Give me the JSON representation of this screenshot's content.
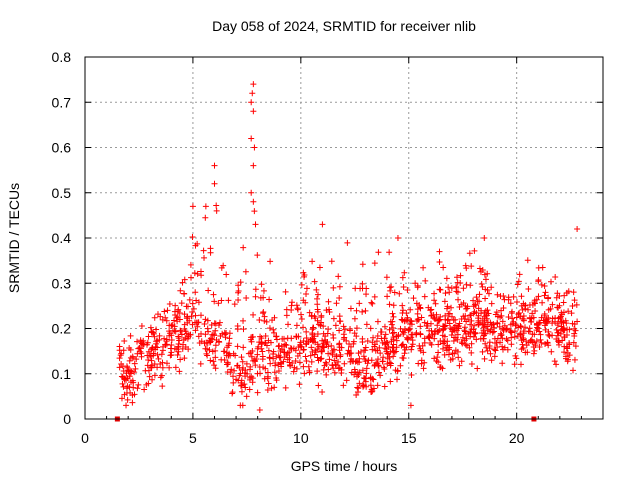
{
  "chart_data": {
    "type": "scatter",
    "title": "Day 058 of 2024, SRMTID for receiver nlib",
    "xlabel": "GPS time / hours",
    "ylabel": "SRMTID / TECUs",
    "xlim": [
      0,
      24
    ],
    "ylim": [
      0,
      0.8
    ],
    "xticks": [
      0,
      5,
      10,
      15,
      20
    ],
    "yticks": [
      0,
      0.1,
      0.2,
      0.3,
      0.4,
      0.5,
      0.6,
      0.7,
      0.8
    ],
    "xtick_labels": [
      "0",
      "5",
      "10",
      "15",
      "20"
    ],
    "ytick_labels": [
      "0",
      "0.1",
      "0.2",
      "0.3",
      "0.4",
      "0.5",
      "0.6",
      "0.7",
      "0.8"
    ],
    "grid": true,
    "point_color": "#ff0000",
    "marker_color": "#e00000",
    "baseline_markers_x": [
      1.5,
      20.8
    ],
    "series_envelope": {
      "name": "SRMTID",
      "hours": [
        1.6,
        2.0,
        2.5,
        3.0,
        3.5,
        4.0,
        4.5,
        5.0,
        5.5,
        6.0,
        6.5,
        7.0,
        7.5,
        7.8,
        8.2,
        9.0,
        10.0,
        10.5,
        11.0,
        12.0,
        13.0,
        14.0,
        15.0,
        16.0,
        17.0,
        18.0,
        19.0,
        20.0,
        21.0,
        22.0,
        22.8
      ],
      "typical": [
        0.1,
        0.09,
        0.12,
        0.13,
        0.15,
        0.17,
        0.19,
        0.22,
        0.18,
        0.17,
        0.15,
        0.1,
        0.08,
        0.15,
        0.13,
        0.13,
        0.15,
        0.17,
        0.15,
        0.14,
        0.11,
        0.16,
        0.18,
        0.18,
        0.19,
        0.2,
        0.2,
        0.2,
        0.2,
        0.2,
        0.17
      ],
      "peak": [
        0.16,
        0.2,
        0.21,
        0.22,
        0.28,
        0.3,
        0.35,
        0.47,
        0.47,
        0.56,
        0.4,
        0.33,
        0.62,
        0.74,
        0.38,
        0.32,
        0.4,
        0.43,
        0.38,
        0.4,
        0.35,
        0.41,
        0.36,
        0.39,
        0.36,
        0.41,
        0.36,
        0.35,
        0.37,
        0.31,
        0.42
      ]
    },
    "notable_points": [
      {
        "x": 7.8,
        "y": 0.74
      },
      {
        "x": 7.75,
        "y": 0.72
      },
      {
        "x": 7.7,
        "y": 0.7
      },
      {
        "x": 7.8,
        "y": 0.68
      },
      {
        "x": 7.7,
        "y": 0.62
      },
      {
        "x": 7.85,
        "y": 0.6
      },
      {
        "x": 7.8,
        "y": 0.56
      },
      {
        "x": 6.0,
        "y": 0.56
      },
      {
        "x": 6.0,
        "y": 0.52
      },
      {
        "x": 7.7,
        "y": 0.5
      },
      {
        "x": 7.8,
        "y": 0.48
      },
      {
        "x": 5.0,
        "y": 0.47
      },
      {
        "x": 5.6,
        "y": 0.47
      },
      {
        "x": 6.1,
        "y": 0.46
      },
      {
        "x": 7.9,
        "y": 0.43
      },
      {
        "x": 11.0,
        "y": 0.43
      },
      {
        "x": 22.8,
        "y": 0.42
      },
      {
        "x": 14.5,
        "y": 0.4
      },
      {
        "x": 18.5,
        "y": 0.4
      },
      {
        "x": 15.1,
        "y": 0.03
      },
      {
        "x": 8.1,
        "y": 0.02
      }
    ]
  }
}
